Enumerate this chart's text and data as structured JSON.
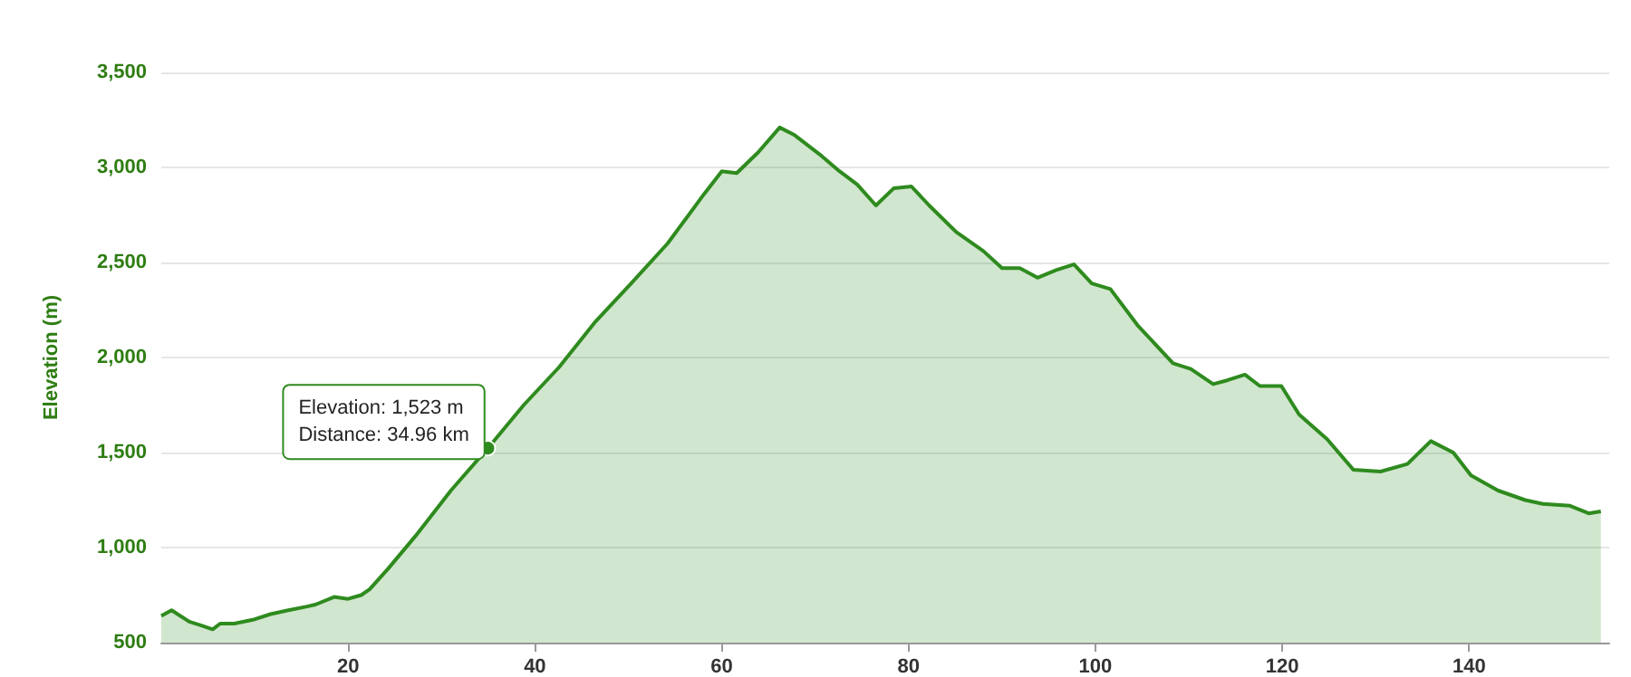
{
  "chart_data": {
    "type": "area",
    "ylabel": "Elevation (m)",
    "x": [
      0,
      1.1,
      3,
      4.3,
      5.5,
      6.3,
      7.8,
      9.8,
      11.7,
      13.6,
      15.6,
      16.5,
      18.5,
      20,
      21.4,
      22.3,
      24.3,
      27.2,
      31,
      34.96,
      38.8,
      42.6,
      46.5,
      50.3,
      54.2,
      58.1,
      60,
      61.6,
      63.9,
      66.2,
      67.8,
      70.7,
      72.6,
      74.5,
      76.5,
      78.4,
      80.3,
      82.2,
      85.1,
      88,
      90,
      91.9,
      93.8,
      95.8,
      97.7,
      99.6,
      101.6,
      104.5,
      108.3,
      110.2,
      112.6,
      114.1,
      116,
      117.6,
      119.9,
      121.8,
      124.8,
      127.6,
      130.5,
      133.4,
      135.9,
      138.3,
      140.2,
      143.1,
      146,
      147.9,
      150.8,
      152.8,
      154.1
    ],
    "series": [
      {
        "color": "#2e8b1e",
        "values": [
          640,
          670,
          610,
          590,
          570,
          600,
          600,
          620,
          650,
          670,
          690,
          700,
          740,
          730,
          750,
          780,
          890,
          1060,
          1300,
          1523,
          1750,
          1950,
          2190,
          2390,
          2600,
          2860,
          2980,
          2970,
          3080,
          3210,
          3170,
          3060,
          2980,
          2910,
          2800,
          2890,
          2900,
          2800,
          2660,
          2560,
          2470,
          2470,
          2420,
          2460,
          2490,
          2390,
          2360,
          2170,
          1970,
          1940,
          1860,
          1880,
          1910,
          1850,
          1850,
          1700,
          1570,
          1410,
          1400,
          1440,
          1560,
          1500,
          1380,
          1300,
          1250,
          1230,
          1220,
          1180,
          1190
        ]
      }
    ],
    "xlim": [
      0,
      155
    ],
    "xticks": [
      20,
      40,
      60,
      80,
      100,
      120,
      140
    ],
    "ylim": [
      500,
      3500
    ],
    "yticks": [
      {
        "value": 500,
        "label": "500"
      },
      {
        "value": 1000,
        "label": "1,000"
      },
      {
        "value": 1500,
        "label": "1,500"
      },
      {
        "value": 2000,
        "label": "2,000"
      },
      {
        "value": 2500,
        "label": "2,500"
      },
      {
        "value": 3000,
        "label": "3,000"
      },
      {
        "value": 3500,
        "label": "3,500"
      }
    ],
    "grid": "y",
    "marker": "none",
    "line_style": "solid",
    "annotations": [
      {
        "text": "Elevation: 1,523 m\nDistance: 34.96 km",
        "x": 34.96,
        "y": 1523
      }
    ]
  }
}
